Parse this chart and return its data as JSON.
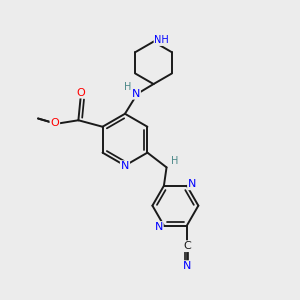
{
  "bg_color": "#ececec",
  "atom_color_N": "#0000ff",
  "atom_color_O": "#ff0000",
  "atom_color_C": "#1a1a1a",
  "atom_color_H": "#4a8888",
  "bond_color": "#1a1a1a",
  "bond_width": 1.4,
  "fig_size": [
    3.0,
    3.0
  ],
  "dpi": 100,
  "xlim": [
    0,
    10
  ],
  "ylim": [
    0,
    10
  ]
}
